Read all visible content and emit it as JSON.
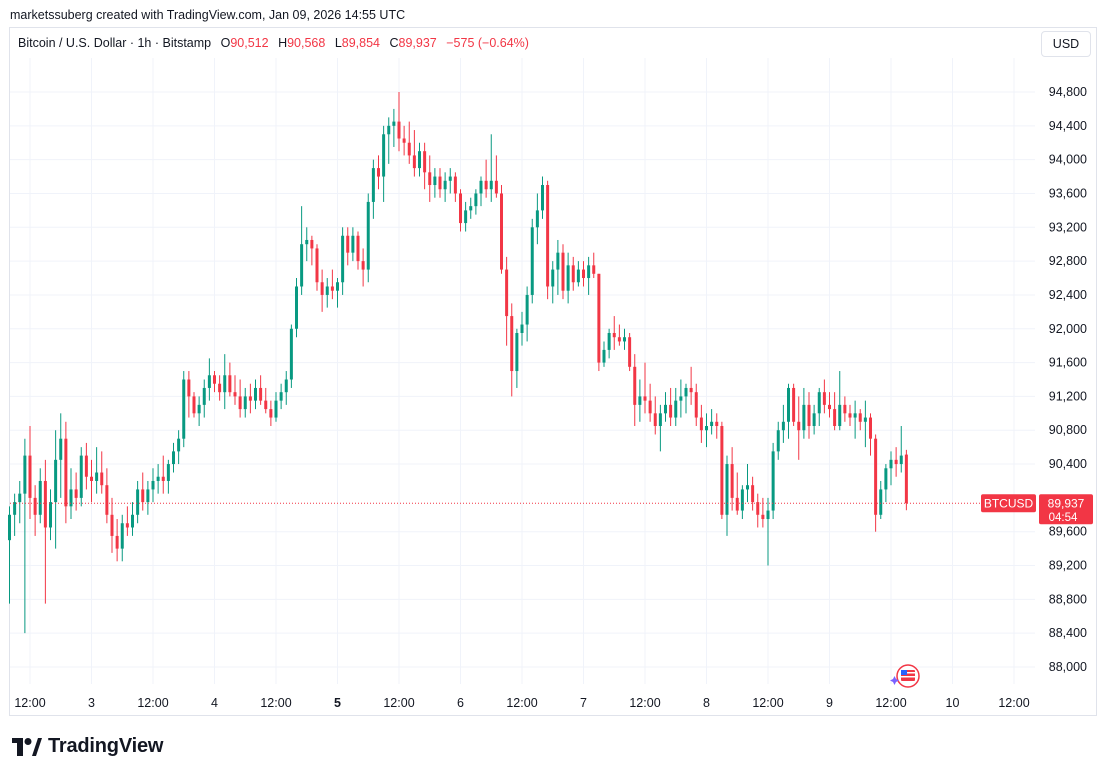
{
  "caption": "marketssuberg created with TradingView.com, Jan 09, 2026 14:55 UTC",
  "legend": {
    "symbol": "Bitcoin / U.S. Dollar · 1h · Bitstamp",
    "o_label": "O",
    "o_value": "90,512",
    "h_label": "H",
    "h_value": "90,568",
    "l_label": "L",
    "l_value": "89,854",
    "c_label": "C",
    "c_value": "89,937",
    "change": "−575 (−0.64%)"
  },
  "currency_button": "USD",
  "price_tag": {
    "symbol": "BTCUSD",
    "price": "89,937",
    "countdown": "04:54"
  },
  "brand": {
    "name": "TradingView"
  },
  "colors": {
    "up": "#089981",
    "down": "#f23645",
    "grid": "#f0f3fa",
    "text": "#131722"
  },
  "chart_data": {
    "type": "candlestick",
    "y_ticks": [
      "88,000",
      "88,400",
      "88,800",
      "89,200",
      "89,600",
      "90,400",
      "90,800",
      "91,200",
      "91,600",
      "92,000",
      "92,400",
      "92,800",
      "93,200",
      "93,600",
      "94,000",
      "94,400",
      "94,800"
    ],
    "y_tick_values": [
      88000,
      88400,
      88800,
      89200,
      89600,
      90400,
      90800,
      91200,
      91600,
      92000,
      92400,
      92800,
      93200,
      93600,
      94000,
      94400,
      94800
    ],
    "ylim": [
      87700,
      95200
    ],
    "x_ticks": [
      "12:00",
      "3",
      "12:00",
      "4",
      "12:00",
      "5",
      "12:00",
      "6",
      "12:00",
      "7",
      "12:00",
      "8",
      "12:00",
      "9",
      "12:00",
      "10",
      "12:00"
    ],
    "x_tick_bold": [
      false,
      false,
      false,
      false,
      false,
      true,
      false,
      false,
      false,
      false,
      false,
      false,
      false,
      false,
      false,
      false,
      false
    ],
    "x_tick_hours": [
      0,
      12,
      24,
      36,
      48,
      60,
      72,
      84,
      96,
      108,
      120,
      132,
      144,
      156,
      168,
      180,
      192
    ],
    "last_price": 89937,
    "candles": [
      [
        89500,
        89900,
        88750,
        89800
      ],
      [
        89800,
        90050,
        89550,
        89950
      ],
      [
        89950,
        90200,
        89700,
        90050
      ],
      [
        90050,
        90700,
        88400,
        90500
      ],
      [
        90500,
        90850,
        89750,
        90000
      ],
      [
        90000,
        90150,
        89550,
        89800
      ],
      [
        89800,
        90350,
        89700,
        90200
      ],
      [
        90200,
        90450,
        88750,
        89650
      ],
      [
        89650,
        90100,
        89500,
        89950
      ],
      [
        89950,
        90800,
        89400,
        90450
      ],
      [
        90450,
        91000,
        90000,
        90700
      ],
      [
        90700,
        90900,
        89700,
        89900
      ],
      [
        89900,
        90350,
        89750,
        90100
      ],
      [
        90100,
        90300,
        89850,
        90000
      ],
      [
        90000,
        90600,
        89900,
        90500
      ],
      [
        90500,
        90650,
        90100,
        90250
      ],
      [
        90250,
        90450,
        89950,
        90200
      ],
      [
        90200,
        90600,
        90050,
        90300
      ],
      [
        90300,
        90550,
        90050,
        90150
      ],
      [
        90150,
        90350,
        89700,
        89800
      ],
      [
        89800,
        90000,
        89350,
        89550
      ],
      [
        89550,
        89750,
        89250,
        89400
      ],
      [
        89400,
        89800,
        89250,
        89700
      ],
      [
        89700,
        89900,
        89550,
        89650
      ],
      [
        89650,
        89950,
        89550,
        89800
      ],
      [
        89800,
        90200,
        89700,
        90100
      ],
      [
        90100,
        90300,
        89850,
        89950
      ],
      [
        89950,
        90200,
        89800,
        90100
      ],
      [
        90100,
        90350,
        89950,
        90200
      ],
      [
        90200,
        90400,
        90050,
        90250
      ],
      [
        90250,
        90500,
        90050,
        90200
      ],
      [
        90200,
        90450,
        90050,
        90400
      ],
      [
        90400,
        90650,
        90300,
        90550
      ],
      [
        90550,
        90800,
        90400,
        90700
      ],
      [
        90700,
        91500,
        90600,
        91400
      ],
      [
        91400,
        91500,
        90950,
        91200
      ],
      [
        91200,
        91250,
        90950,
        91000
      ],
      [
        91000,
        91200,
        90850,
        91100
      ],
      [
        91100,
        91400,
        90950,
        91300
      ],
      [
        91300,
        91650,
        91150,
        91450
      ],
      [
        91450,
        91500,
        91250,
        91350
      ],
      [
        91350,
        91450,
        91150,
        91250
      ],
      [
        91250,
        91700,
        91050,
        91450
      ],
      [
        91450,
        91600,
        91200,
        91250
      ],
      [
        91250,
        91450,
        91100,
        91200
      ],
      [
        91200,
        91400,
        90950,
        91050
      ],
      [
        91050,
        91300,
        90950,
        91200
      ],
      [
        91200,
        91350,
        91000,
        91150
      ],
      [
        91150,
        91400,
        91050,
        91300
      ],
      [
        91300,
        91450,
        91100,
        91150
      ],
      [
        91150,
        91300,
        91000,
        91050
      ],
      [
        91050,
        91150,
        90850,
        90950
      ],
      [
        90950,
        91250,
        90900,
        91150
      ],
      [
        91150,
        91350,
        91050,
        91250
      ],
      [
        91250,
        91500,
        91100,
        91400
      ],
      [
        91400,
        92050,
        91300,
        92000
      ],
      [
        92000,
        92600,
        91900,
        92500
      ],
      [
        92500,
        93450,
        92400,
        93000
      ],
      [
        93000,
        93200,
        92800,
        93050
      ],
      [
        93050,
        93100,
        92750,
        92950
      ],
      [
        92950,
        93000,
        92450,
        92550
      ],
      [
        92550,
        92700,
        92200,
        92400
      ],
      [
        92400,
        92600,
        92250,
        92500
      ],
      [
        92500,
        92700,
        92350,
        92450
      ],
      [
        92450,
        92600,
        92250,
        92550
      ],
      [
        92550,
        93200,
        92400,
        93100
      ],
      [
        93100,
        93200,
        92750,
        92900
      ],
      [
        92900,
        93200,
        92800,
        93100
      ],
      [
        93100,
        93150,
        92700,
        92800
      ],
      [
        92800,
        92950,
        92500,
        92700
      ],
      [
        92700,
        93600,
        92550,
        93500
      ],
      [
        93500,
        94000,
        93300,
        93900
      ],
      [
        93900,
        94050,
        93650,
        93800
      ],
      [
        93800,
        94400,
        93500,
        94300
      ],
      [
        94300,
        94500,
        93950,
        94400
      ],
      [
        94400,
        94600,
        94150,
        94450
      ],
      [
        94450,
        94800,
        94100,
        94250
      ],
      [
        94250,
        94400,
        94050,
        94200
      ],
      [
        94200,
        94450,
        93950,
        94050
      ],
      [
        94050,
        94350,
        93800,
        93900
      ],
      [
        93900,
        94200,
        93800,
        94100
      ],
      [
        94100,
        94200,
        93650,
        93850
      ],
      [
        93850,
        94050,
        93500,
        93700
      ],
      [
        93700,
        93900,
        93550,
        93800
      ],
      [
        93800,
        93900,
        93550,
        93650
      ],
      [
        93650,
        93850,
        93500,
        93750
      ],
      [
        93750,
        93900,
        93600,
        93800
      ],
      [
        93800,
        93850,
        93500,
        93600
      ],
      [
        93600,
        93650,
        93150,
        93250
      ],
      [
        93250,
        93500,
        93150,
        93400
      ],
      [
        93400,
        93550,
        93300,
        93450
      ],
      [
        93450,
        93650,
        93350,
        93600
      ],
      [
        93600,
        93800,
        93450,
        93750
      ],
      [
        93750,
        94000,
        93550,
        93650
      ],
      [
        93650,
        94300,
        93500,
        93750
      ],
      [
        93750,
        94050,
        93550,
        93600
      ],
      [
        93600,
        93700,
        92650,
        92700
      ],
      [
        92700,
        92850,
        91800,
        92150
      ],
      [
        92150,
        92300,
        91200,
        91500
      ],
      [
        91500,
        92000,
        91300,
        91950
      ],
      [
        91950,
        92200,
        91800,
        92050
      ],
      [
        92050,
        92500,
        91850,
        92400
      ],
      [
        92400,
        93300,
        92300,
        93200
      ],
      [
        93200,
        93600,
        93000,
        93400
      ],
      [
        93400,
        93800,
        93300,
        93700
      ],
      [
        93700,
        93750,
        92350,
        92500
      ],
      [
        92500,
        92800,
        92300,
        92700
      ],
      [
        92700,
        93050,
        92400,
        92900
      ],
      [
        92900,
        93000,
        92350,
        92450
      ],
      [
        92450,
        92900,
        92300,
        92750
      ],
      [
        92750,
        92850,
        92450,
        92550
      ],
      [
        92550,
        92800,
        92500,
        92700
      ],
      [
        92700,
        92800,
        92500,
        92600
      ],
      [
        92600,
        92850,
        92400,
        92750
      ],
      [
        92750,
        92900,
        92600,
        92650
      ],
      [
        92650,
        92650,
        91500,
        91600
      ],
      [
        91600,
        91850,
        91550,
        91750
      ],
      [
        91750,
        92000,
        91650,
        91950
      ],
      [
        91950,
        92150,
        91750,
        91900
      ],
      [
        91900,
        92050,
        91800,
        91850
      ],
      [
        91850,
        92000,
        91750,
        91900
      ],
      [
        91900,
        91950,
        91500,
        91550
      ],
      [
        91550,
        91700,
        90850,
        91100
      ],
      [
        91100,
        91400,
        90900,
        91200
      ],
      [
        91200,
        91600,
        91000,
        91150
      ],
      [
        91150,
        91350,
        90900,
        91000
      ],
      [
        91000,
        91200,
        90750,
        90850
      ],
      [
        90850,
        91100,
        90550,
        91000
      ],
      [
        91000,
        91250,
        90900,
        91100
      ],
      [
        91100,
        91300,
        90850,
        90950
      ],
      [
        90950,
        91300,
        90850,
        91150
      ],
      [
        91150,
        91400,
        90950,
        91200
      ],
      [
        91200,
        91350,
        91000,
        91300
      ],
      [
        91300,
        91550,
        91100,
        91250
      ],
      [
        91250,
        91350,
        90850,
        90950
      ],
      [
        90950,
        91100,
        90650,
        90800
      ],
      [
        90800,
        91000,
        90600,
        90850
      ],
      [
        90850,
        91050,
        90750,
        90900
      ],
      [
        90900,
        91000,
        90700,
        90850
      ],
      [
        90850,
        90900,
        89750,
        89800
      ],
      [
        89800,
        90500,
        89550,
        90400
      ],
      [
        90400,
        90600,
        89850,
        90000
      ],
      [
        90000,
        90300,
        89800,
        89850
      ],
      [
        89850,
        90150,
        89750,
        90100
      ],
      [
        90100,
        90400,
        89950,
        90150
      ],
      [
        90150,
        90250,
        89850,
        89950
      ],
      [
        89950,
        90050,
        89650,
        89800
      ],
      [
        89800,
        90000,
        89650,
        89750
      ],
      [
        89750,
        90000,
        89200,
        89850
      ],
      [
        89850,
        90650,
        89750,
        90550
      ],
      [
        90550,
        90900,
        90450,
        90800
      ],
      [
        90800,
        91100,
        90650,
        90900
      ],
      [
        90900,
        91350,
        90700,
        91300
      ],
      [
        91300,
        91350,
        90850,
        90900
      ],
      [
        90900,
        91200,
        90450,
        90800
      ],
      [
        90800,
        91300,
        90700,
        91100
      ],
      [
        91100,
        91250,
        90700,
        90850
      ],
      [
        90850,
        91100,
        90750,
        91000
      ],
      [
        91000,
        91300,
        90850,
        91250
      ],
      [
        91250,
        91400,
        91000,
        91100
      ],
      [
        91100,
        91250,
        90950,
        91050
      ],
      [
        91050,
        91250,
        90800,
        90850
      ],
      [
        90850,
        91500,
        90800,
        91100
      ],
      [
        91100,
        91200,
        90900,
        91000
      ],
      [
        91000,
        91100,
        90850,
        90950
      ],
      [
        90950,
        91150,
        90700,
        91000
      ],
      [
        91000,
        91050,
        90800,
        90900
      ],
      [
        90900,
        91150,
        90600,
        90950
      ],
      [
        90950,
        91000,
        90500,
        90700
      ],
      [
        90700,
        90750,
        89600,
        89800
      ],
      [
        89800,
        90200,
        89750,
        90100
      ],
      [
        90100,
        90400,
        89950,
        90350
      ],
      [
        90350,
        90550,
        90150,
        90450
      ],
      [
        90450,
        90600,
        90250,
        90400
      ],
      [
        90400,
        90850,
        90300,
        90500
      ],
      [
        90512,
        90568,
        89854,
        89937
      ]
    ]
  }
}
